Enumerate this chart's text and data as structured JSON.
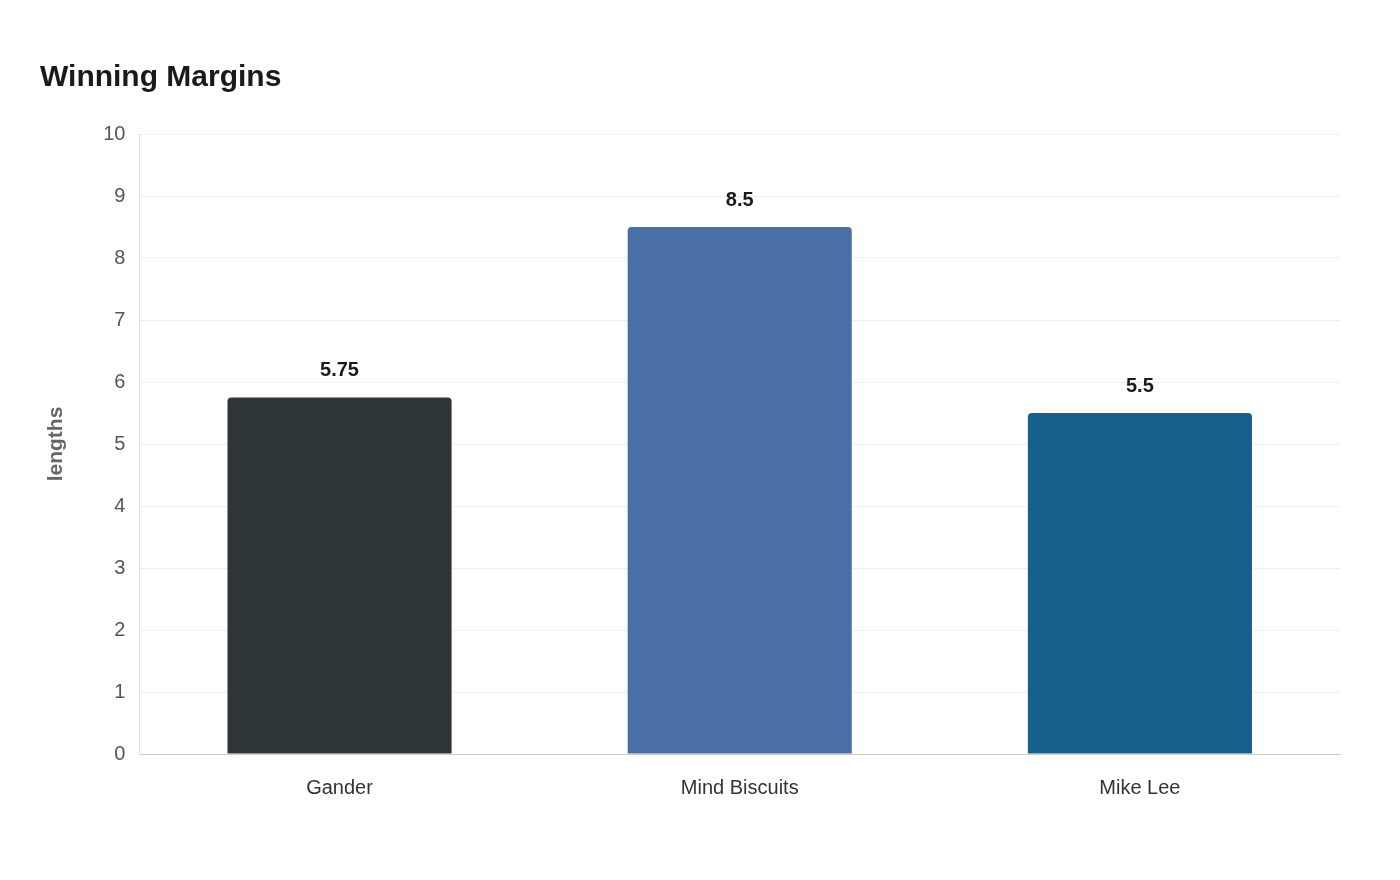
{
  "chart_data": {
    "type": "bar",
    "title": "Winning Margins",
    "ylabel": "lengths",
    "categories": [
      "Gander",
      "Mind Biscuits",
      "Mike Lee"
    ],
    "values": [
      5.75,
      8.5,
      5.5
    ],
    "colors": [
      "#2d3539",
      "#4a6fa5",
      "#17608a"
    ],
    "ylim": [
      0,
      10
    ],
    "yticks": [
      0,
      1,
      2,
      3,
      4,
      5,
      6,
      7,
      8,
      9,
      10
    ],
    "grid": "y",
    "legend": false,
    "data_labels": true
  }
}
